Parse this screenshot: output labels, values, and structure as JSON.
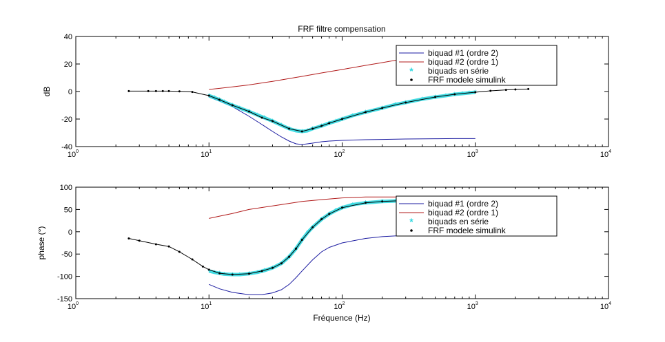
{
  "chart_data": [
    {
      "type": "line",
      "title": "FRF filtre compensation",
      "xlabel": "",
      "ylabel": "dB",
      "xscale": "log",
      "xlim": [
        1,
        10000
      ],
      "ylim": [
        -40,
        40
      ],
      "xticks": [
        1,
        10,
        100,
        1000,
        10000
      ],
      "yticks": [
        -40,
        -20,
        0,
        20,
        40
      ],
      "grid": false,
      "legend_position": "top-right",
      "series": [
        {
          "name": "biquad #1 (ordre 2)",
          "color": "#1a1aa0",
          "marker": "none",
          "x": [
            10,
            12,
            15,
            20,
            25,
            30,
            35,
            40,
            45,
            50,
            55,
            60,
            70,
            80,
            100,
            150,
            200,
            300,
            500,
            700,
            1000
          ],
          "y": [
            -4,
            -7,
            -11,
            -18,
            -24,
            -29,
            -33,
            -36,
            -38,
            -38.5,
            -38,
            -37.5,
            -36.5,
            -36,
            -35.5,
            -35,
            -34.8,
            -34.5,
            -34.3,
            -34.2,
            -34.2
          ]
        },
        {
          "name": "biquad #2 (ordre 1)",
          "color": "#b01818",
          "marker": "none",
          "x": [
            10,
            12,
            15,
            20,
            30,
            50,
            70,
            100,
            150,
            200,
            300,
            500,
            700,
            1000
          ],
          "y": [
            1.5,
            2.3,
            3.4,
            4.8,
            7.4,
            11,
            13.5,
            16,
            19,
            21,
            24,
            26,
            27,
            28
          ]
        },
        {
          "name": "biquads en série",
          "color": "#30d8e0",
          "marker": "star",
          "x": [
            10,
            11,
            12,
            13,
            15,
            17,
            20,
            23,
            26,
            30,
            35,
            40,
            45,
            50,
            55,
            60,
            70,
            80,
            90,
            100,
            120,
            150,
            200,
            250,
            300,
            400,
            500,
            600,
            700,
            800,
            900,
            1000
          ],
          "y": [
            -3,
            -4.5,
            -6,
            -7.5,
            -10,
            -12,
            -14.5,
            -17,
            -19,
            -21.5,
            -24.5,
            -27,
            -28.5,
            -29,
            -28.5,
            -27,
            -25,
            -23,
            -21.5,
            -20,
            -17.5,
            -15,
            -12,
            -9.5,
            -8,
            -5.5,
            -4,
            -3,
            -2,
            -1.5,
            -1,
            -0.5
          ]
        },
        {
          "name": "FRF modele simulink",
          "color": "#000000",
          "marker": "dot",
          "x": [
            2.5,
            3.5,
            4,
            4.5,
            5,
            6,
            7.5,
            10,
            12,
            15,
            20,
            25,
            30,
            40,
            50,
            60,
            70,
            80,
            100,
            150,
            200,
            300,
            500,
            700,
            1000,
            1300,
            1700,
            2000,
            2500
          ],
          "y": [
            0.3,
            0.3,
            0.3,
            0.3,
            0.3,
            0.1,
            -0.3,
            -3,
            -6,
            -10,
            -14.5,
            -19,
            -21.5,
            -27,
            -29,
            -27,
            -25,
            -23,
            -20,
            -15,
            -12,
            -8,
            -4,
            -2,
            -0.5,
            0.5,
            1.2,
            1.5,
            1.8
          ]
        }
      ]
    },
    {
      "type": "line",
      "title": "",
      "xlabel": "Fréquence (Hz)",
      "ylabel": "phase (°)",
      "xscale": "log",
      "xlim": [
        1,
        10000
      ],
      "ylim": [
        -150,
        100
      ],
      "xticks": [
        1,
        10,
        100,
        1000,
        10000
      ],
      "yticks": [
        -150,
        -100,
        -50,
        0,
        50,
        100
      ],
      "grid": false,
      "legend_position": "top-right",
      "series": [
        {
          "name": "biquad #1 (ordre 2)",
          "color": "#1a1aa0",
          "marker": "none",
          "x": [
            10,
            12,
            15,
            20,
            25,
            30,
            35,
            40,
            45,
            50,
            60,
            70,
            80,
            100,
            150,
            200,
            300,
            500,
            700,
            1000
          ],
          "y": [
            -118,
            -128,
            -136,
            -141,
            -141,
            -137,
            -130,
            -118,
            -103,
            -88,
            -63,
            -45,
            -35,
            -25,
            -15,
            -11,
            -8,
            -5,
            -4,
            -3
          ]
        },
        {
          "name": "biquad #2 (ordre 1)",
          "color": "#b01818",
          "marker": "none",
          "x": [
            10,
            12,
            15,
            20,
            30,
            50,
            70,
            100,
            150,
            200,
            300,
            500,
            700,
            1000
          ],
          "y": [
            30,
            35,
            41,
            50,
            58,
            68,
            72,
            76,
            78,
            78,
            78,
            77,
            77,
            76
          ]
        },
        {
          "name": "biquads en série",
          "color": "#30d8e0",
          "marker": "star",
          "x": [
            10,
            11,
            12,
            13,
            15,
            17,
            20,
            23,
            26,
            30,
            35,
            40,
            45,
            50,
            55,
            60,
            70,
            80,
            90,
            100,
            120,
            150,
            200,
            250,
            300,
            400,
            500,
            700,
            1000
          ],
          "y": [
            -88,
            -91,
            -93,
            -95,
            -96,
            -96,
            -94,
            -91,
            -87,
            -81,
            -71,
            -56,
            -38,
            -18,
            -2,
            10,
            28,
            40,
            48,
            54,
            61,
            65,
            68,
            69,
            70,
            70,
            70,
            69,
            68
          ]
        },
        {
          "name": "FRF modele simulink",
          "color": "#000000",
          "marker": "dot",
          "x": [
            2.5,
            3,
            4,
            5,
            6,
            7.5,
            9,
            10,
            12,
            15,
            20,
            25,
            30,
            35,
            40,
            45,
            50,
            60,
            70,
            80,
            100,
            150,
            200,
            300,
            500,
            700,
            1000,
            1300,
            1700,
            2000,
            2500
          ],
          "y": [
            -15,
            -20,
            -28,
            -33,
            -45,
            -62,
            -78,
            -85,
            -93,
            -96,
            -94,
            -88,
            -81,
            -71,
            -56,
            -38,
            -18,
            10,
            28,
            40,
            54,
            65,
            68,
            70,
            70,
            69,
            68,
            67,
            67,
            66,
            66
          ]
        }
      ]
    }
  ]
}
